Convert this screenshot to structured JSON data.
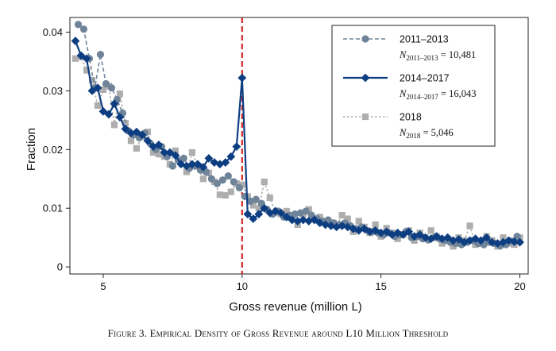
{
  "chart_data": {
    "type": "line",
    "xlabel": "Gross revenue (million L)",
    "ylabel": "Fraction",
    "xlim": [
      3.8,
      20.3
    ],
    "ylim": [
      -0.0012,
      0.0425
    ],
    "xticks": [
      5,
      10,
      15,
      20
    ],
    "yticks": [
      0,
      0.01,
      0.02,
      0.03,
      0.04
    ],
    "ytick_labels": [
      "0",
      "0.01",
      "0.02",
      "0.03",
      "0.04"
    ],
    "threshold": {
      "x": 10,
      "color": "#d62728"
    },
    "series": [
      {
        "name": "2011–2013",
        "n_label": {
          "prefix": "N",
          "sub": "2011–2013",
          "value": "10,481"
        },
        "color": "#6f8399",
        "line": "dashed",
        "marker": "circle",
        "x": [
          4.1,
          4.3,
          4.5,
          4.7,
          4.9,
          5.1,
          5.3,
          5.5,
          5.7,
          5.9,
          6.1,
          6.3,
          6.5,
          6.7,
          6.9,
          7.1,
          7.3,
          7.5,
          7.7,
          7.9,
          8.1,
          8.3,
          8.5,
          8.7,
          8.9,
          9.1,
          9.3,
          9.5,
          9.7,
          9.9,
          10.1,
          10.3,
          10.5,
          10.7,
          10.9,
          11.1,
          11.3,
          11.5,
          11.7,
          11.9,
          12.1,
          12.3,
          12.5,
          12.7,
          12.9,
          13.1,
          13.3,
          13.5,
          13.7,
          13.9,
          14.1,
          14.3,
          14.5,
          14.7,
          14.9,
          15.1,
          15.3,
          15.5,
          15.7,
          15.9,
          16.1,
          16.3,
          16.5,
          16.7,
          16.9,
          17.1,
          17.3,
          17.5,
          17.7,
          17.9,
          18.1,
          18.3,
          18.5,
          18.7,
          18.9,
          19.1,
          19.3,
          19.5,
          19.7,
          19.9
        ],
        "values": [
          0.0413,
          0.0405,
          0.0355,
          0.0305,
          0.0362,
          0.0312,
          0.0305,
          0.0285,
          0.0262,
          0.0232,
          0.0225,
          0.022,
          0.0228,
          0.021,
          0.02,
          0.0205,
          0.0188,
          0.0172,
          0.0182,
          0.0185,
          0.0168,
          0.0172,
          0.0165,
          0.0162,
          0.015,
          0.0142,
          0.0148,
          0.0155,
          0.0145,
          0.0135,
          0.012,
          0.0112,
          0.0115,
          0.0108,
          0.0098,
          0.009,
          0.0095,
          0.0085,
          0.0088,
          0.009,
          0.0092,
          0.0095,
          0.0088,
          0.0082,
          0.0078,
          0.008,
          0.0075,
          0.0072,
          0.0075,
          0.007,
          0.0065,
          0.0068,
          0.0062,
          0.006,
          0.0058,
          0.0055,
          0.0058,
          0.0052,
          0.0055,
          0.006,
          0.005,
          0.0052,
          0.0048,
          0.0046,
          0.005,
          0.0048,
          0.0045,
          0.0042,
          0.004,
          0.0038,
          0.0042,
          0.0045,
          0.004,
          0.0038,
          0.0042,
          0.004,
          0.0036,
          0.0038,
          0.0044,
          0.0052
        ]
      },
      {
        "name": "2014–2017",
        "n_label": {
          "prefix": "N",
          "sub": "2014–2017",
          "value": "16,043"
        },
        "color": "#0e3e82",
        "line": "solid",
        "marker": "diamond",
        "x": [
          4.0,
          4.2,
          4.4,
          4.6,
          4.8,
          5.0,
          5.2,
          5.4,
          5.6,
          5.8,
          6.0,
          6.2,
          6.4,
          6.6,
          6.8,
          7.0,
          7.2,
          7.4,
          7.6,
          7.8,
          8.0,
          8.2,
          8.4,
          8.6,
          8.8,
          9.0,
          9.2,
          9.4,
          9.6,
          9.8,
          10.0,
          10.2,
          10.4,
          10.6,
          10.8,
          11.0,
          11.2,
          11.4,
          11.6,
          11.8,
          12.0,
          12.2,
          12.4,
          12.6,
          12.8,
          13.0,
          13.2,
          13.4,
          13.6,
          13.8,
          14.0,
          14.2,
          14.4,
          14.6,
          14.8,
          15.0,
          15.2,
          15.4,
          15.6,
          15.8,
          16.0,
          16.2,
          16.4,
          16.6,
          16.8,
          17.0,
          17.2,
          17.4,
          17.6,
          17.8,
          18.0,
          18.2,
          18.4,
          18.6,
          18.8,
          19.0,
          19.2,
          19.4,
          19.6,
          19.8,
          20.0
        ],
        "values": [
          0.0385,
          0.036,
          0.0355,
          0.03,
          0.0305,
          0.0265,
          0.026,
          0.0278,
          0.0255,
          0.0235,
          0.0228,
          0.023,
          0.0225,
          0.0215,
          0.0205,
          0.0208,
          0.0195,
          0.0195,
          0.019,
          0.0175,
          0.0172,
          0.0175,
          0.0175,
          0.017,
          0.0185,
          0.0178,
          0.0175,
          0.0178,
          0.0188,
          0.0205,
          0.0322,
          0.009,
          0.0082,
          0.009,
          0.01,
          0.0092,
          0.0095,
          0.0092,
          0.0085,
          0.008,
          0.0078,
          0.008,
          0.0078,
          0.008,
          0.0075,
          0.0072,
          0.007,
          0.0068,
          0.007,
          0.0068,
          0.0065,
          0.0062,
          0.0065,
          0.006,
          0.0062,
          0.0058,
          0.006,
          0.0055,
          0.0058,
          0.0055,
          0.006,
          0.0052,
          0.0055,
          0.005,
          0.0048,
          0.0052,
          0.0048,
          0.005,
          0.0045,
          0.0047,
          0.0042,
          0.0045,
          0.0048,
          0.0045,
          0.005,
          0.0042,
          0.004,
          0.0042,
          0.0045,
          0.0043,
          0.0042
        ]
      },
      {
        "name": "2018",
        "n_label": {
          "prefix": "N",
          "sub": "2018",
          "value": "5,046"
        },
        "color": "#aeaeae",
        "line": "dotted",
        "marker": "square",
        "x": [
          4.0,
          4.2,
          4.4,
          4.6,
          4.8,
          5.0,
          5.2,
          5.4,
          5.6,
          5.8,
          6.0,
          6.2,
          6.4,
          6.6,
          6.8,
          7.0,
          7.2,
          7.4,
          7.6,
          7.8,
          8.0,
          8.2,
          8.4,
          8.6,
          8.8,
          9.0,
          9.2,
          9.4,
          9.6,
          9.8,
          10.0,
          10.2,
          10.4,
          10.6,
          10.8,
          11.0,
          11.2,
          11.4,
          11.6,
          11.8,
          12.0,
          12.2,
          12.4,
          12.6,
          12.8,
          13.0,
          13.2,
          13.4,
          13.6,
          13.8,
          14.0,
          14.2,
          14.4,
          14.6,
          14.8,
          15.0,
          15.2,
          15.4,
          15.6,
          15.8,
          16.0,
          16.2,
          16.4,
          16.6,
          16.8,
          17.0,
          17.2,
          17.4,
          17.6,
          17.8,
          18.0,
          18.2,
          18.4,
          18.6,
          18.8,
          19.0,
          19.2,
          19.4,
          19.6,
          19.8,
          20.0
        ],
        "values": [
          0.0355,
          0.0358,
          0.0335,
          0.0318,
          0.0275,
          0.0302,
          0.0308,
          0.0242,
          0.0295,
          0.0245,
          0.0215,
          0.0202,
          0.0222,
          0.023,
          0.0195,
          0.0192,
          0.0188,
          0.0175,
          0.0198,
          0.018,
          0.0162,
          0.0195,
          0.0172,
          0.015,
          0.016,
          0.0145,
          0.0123,
          0.0122,
          0.0128,
          0.0142,
          0.014,
          0.012,
          0.0105,
          0.01,
          0.0145,
          0.0118,
          0.0092,
          0.009,
          0.0095,
          0.0088,
          0.0072,
          0.009,
          0.0098,
          0.0082,
          0.0085,
          0.0078,
          0.0075,
          0.007,
          0.0088,
          0.0082,
          0.006,
          0.0078,
          0.0068,
          0.0058,
          0.0072,
          0.0052,
          0.0066,
          0.0058,
          0.0048,
          0.0055,
          0.0062,
          0.0045,
          0.0058,
          0.005,
          0.0062,
          0.0052,
          0.004,
          0.0045,
          0.0035,
          0.005,
          0.0045,
          0.007,
          0.0038,
          0.004,
          0.0052,
          0.0045,
          0.0035,
          0.005,
          0.004,
          0.0038,
          0.005
        ]
      }
    ]
  },
  "caption": "Figure 3. Empirical Density of Gross Revenue around L10 Million Threshold"
}
